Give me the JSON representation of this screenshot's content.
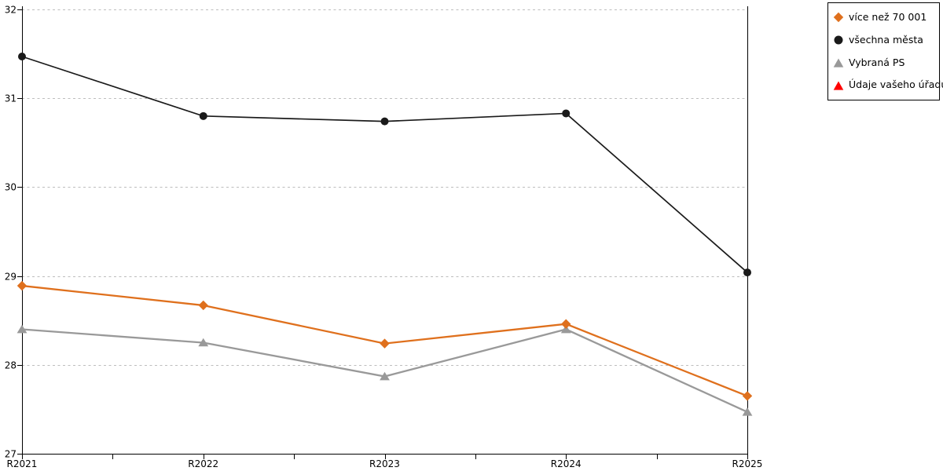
{
  "chart_data": {
    "type": "line",
    "title": "",
    "xlabel": "",
    "ylabel": "",
    "categories": [
      "R2021",
      "R2022",
      "R2023",
      "R2024",
      "R2025"
    ],
    "series": [
      {
        "name": "více než 70 001",
        "marker": "diamond",
        "color": "#DF701D",
        "values": [
          28.89,
          28.67,
          28.24,
          28.46,
          27.65
        ]
      },
      {
        "name": "všechna města",
        "marker": "circle",
        "color": "#1A1A1A",
        "values": [
          31.47,
          30.8,
          30.74,
          30.83,
          29.04
        ]
      },
      {
        "name": "Vybraná PS",
        "marker": "triangle",
        "color": "#999999",
        "values": [
          28.4,
          28.25,
          27.87,
          28.4,
          27.47
        ]
      },
      {
        "name": "Údaje vašeho úřadu",
        "marker": "triangle",
        "color": "#FF0000",
        "values": []
      }
    ],
    "ylim": [
      27,
      32
    ],
    "yticks": [
      27,
      28,
      29,
      30,
      31,
      32
    ],
    "grid": "horizontal-dotted",
    "legend_position": "top-right"
  },
  "colors": {
    "background": "#ffffff",
    "axis": "#000000",
    "gridline": "#BDBDBD",
    "accent_orange": "#DF701D",
    "accent_black": "#1A1A1A",
    "accent_gray": "#999999",
    "accent_red": "#FF0000"
  }
}
